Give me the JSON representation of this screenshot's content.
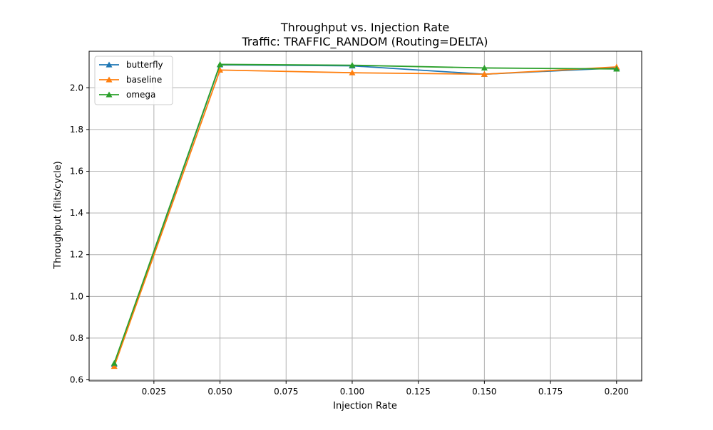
{
  "chart_data": {
    "type": "line",
    "title": "Throughput vs. Injection Rate",
    "subtitle": "Traffic: TRAFFIC_RANDOM (Routing=DELTA)",
    "xlabel": "Injection Rate",
    "ylabel": "Throughput (flits/cycle)",
    "xlim": [
      0.0005,
      0.2095
    ],
    "ylim": [
      0.595,
      2.175
    ],
    "xticks": [
      0.025,
      0.05,
      0.075,
      0.1,
      0.125,
      0.15,
      0.175,
      0.2
    ],
    "xtick_labels": [
      "0.025",
      "0.050",
      "0.075",
      "0.100",
      "0.125",
      "0.150",
      "0.175",
      "0.200"
    ],
    "yticks": [
      0.6,
      0.8,
      1.0,
      1.2,
      1.4,
      1.6,
      1.8,
      2.0
    ],
    "ytick_labels": [
      "0.6",
      "0.8",
      "1.0",
      "1.2",
      "1.4",
      "1.6",
      "1.8",
      "2.0"
    ],
    "grid": true,
    "legend_position": "upper-left",
    "marker": "triangle-up",
    "x": [
      0.01,
      0.05,
      0.1,
      0.15,
      0.2
    ],
    "series": [
      {
        "name": "butterfly",
        "color": "#1f77b4",
        "values": [
          0.675,
          2.11,
          2.105,
          2.065,
          2.095
        ]
      },
      {
        "name": "baseline",
        "color": "#ff7f0e",
        "values": [
          0.665,
          2.085,
          2.072,
          2.065,
          2.1
        ]
      },
      {
        "name": "omega",
        "color": "#2ca02c",
        "values": [
          0.68,
          2.112,
          2.108,
          2.095,
          2.09
        ]
      }
    ]
  }
}
